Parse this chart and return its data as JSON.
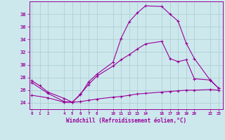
{
  "xlabel": "Windchill (Refroidissement éolien,°C)",
  "background_color": "#cce8ed",
  "grid_color": "#aacccc",
  "line_color": "#990099",
  "x_ticks": [
    0,
    1,
    2,
    4,
    5,
    6,
    7,
    8,
    10,
    11,
    12,
    13,
    14,
    16,
    17,
    18,
    19,
    20,
    22,
    23
  ],
  "ylim": [
    23.0,
    40.0
  ],
  "yticks": [
    24,
    26,
    28,
    30,
    32,
    34,
    36,
    38
  ],
  "series1_x": [
    0,
    1,
    2,
    4,
    5,
    6,
    7,
    8,
    10,
    11,
    12,
    13,
    14,
    16,
    17,
    18,
    19,
    20,
    22,
    23
  ],
  "series1_y": [
    27.5,
    26.7,
    25.7,
    24.7,
    24.1,
    25.3,
    27.3,
    28.5,
    30.4,
    34.2,
    36.8,
    38.2,
    39.3,
    39.2,
    38.0,
    36.9,
    33.4,
    31.0,
    27.5,
    26.3
  ],
  "series2_x": [
    0,
    2,
    4,
    5,
    6,
    7,
    8,
    10,
    11,
    12,
    13,
    14,
    16,
    17,
    18,
    19,
    20,
    22,
    23
  ],
  "series2_y": [
    27.2,
    25.5,
    24.2,
    24.1,
    25.4,
    26.9,
    28.2,
    29.8,
    30.8,
    31.6,
    32.5,
    33.3,
    33.7,
    31.0,
    30.5,
    30.8,
    27.8,
    27.6,
    26.3
  ],
  "series3_x": [
    0,
    2,
    4,
    5,
    6,
    7,
    8,
    10,
    11,
    12,
    13,
    14,
    16,
    17,
    18,
    19,
    20,
    22,
    23
  ],
  "series3_y": [
    25.2,
    24.8,
    24.1,
    24.1,
    24.2,
    24.4,
    24.6,
    24.9,
    25.0,
    25.2,
    25.4,
    25.5,
    25.7,
    25.8,
    25.9,
    26.0,
    26.0,
    26.1,
    26.0
  ]
}
